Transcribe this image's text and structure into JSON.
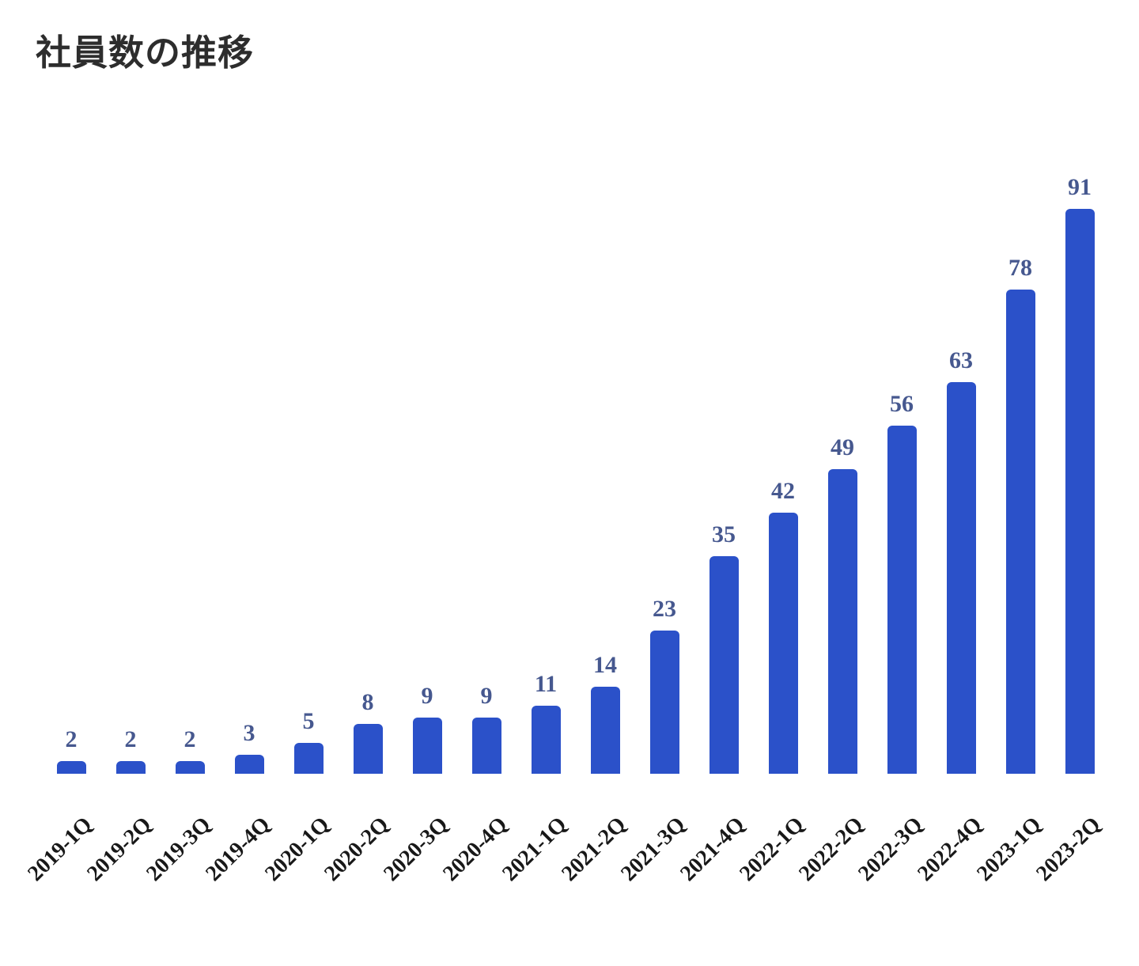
{
  "title": "社員数の推移",
  "chart_data": {
    "type": "bar",
    "title": "社員数の推移",
    "categories": [
      "2019-1Q",
      "2019-2Q",
      "2019-3Q",
      "2019-4Q",
      "2020-1Q",
      "2020-2Q",
      "2020-3Q",
      "2020-4Q",
      "2021-1Q",
      "2021-2Q",
      "2021-3Q",
      "2021-4Q",
      "2022-1Q",
      "2022-2Q",
      "2022-3Q",
      "2022-4Q",
      "2023-1Q",
      "2023-2Q"
    ],
    "values": [
      2,
      2,
      2,
      3,
      5,
      8,
      9,
      9,
      11,
      14,
      23,
      35,
      42,
      49,
      56,
      63,
      78,
      91
    ],
    "xlabel": "",
    "ylabel": "",
    "ylim": [
      0,
      95
    ],
    "grid": false,
    "legend": false,
    "data_labels_shown": true,
    "colors": {
      "bar": "#2b51c9",
      "value_label": "#46588f",
      "axis_label": "#181818",
      "title": "#2d2d2d",
      "background": "#ffffff"
    }
  }
}
